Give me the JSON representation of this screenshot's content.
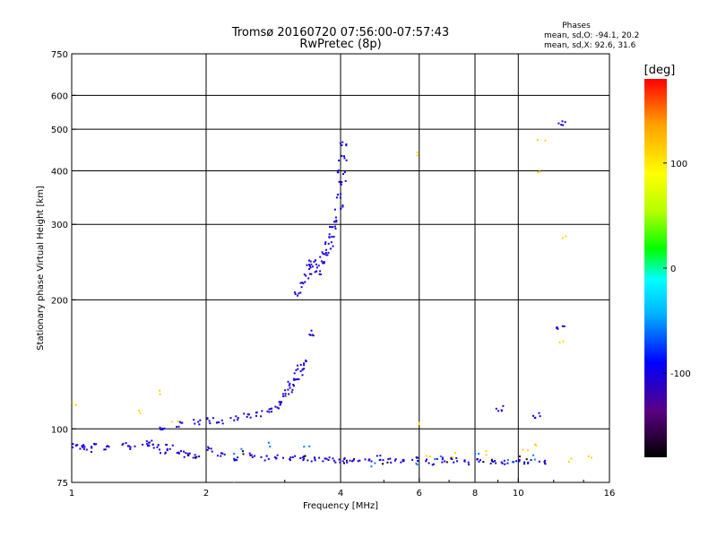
{
  "chart_data": {
    "type": "scatter",
    "title": "Tromsø 20160720 07:56:00-07:57:43",
    "subtitle": "RwPretec (8p)",
    "xlabel": "Frequency [MHz]",
    "ylabel": "Stationary phase Virtual Height [km]",
    "x_scale": "log",
    "y_scale": "log",
    "xlim": [
      1,
      16
    ],
    "ylim": [
      75,
      750
    ],
    "x_ticks": [
      1,
      2,
      4,
      6,
      8,
      10,
      16
    ],
    "x_tick_labels": [
      "1",
      "2",
      "4",
      "6",
      "8",
      "10",
      "16"
    ],
    "y_ticks": [
      75,
      100,
      200,
      300,
      400,
      500,
      600,
      750
    ],
    "y_tick_labels": [
      "75",
      "100",
      "200",
      "300",
      "400",
      "500",
      "600",
      "750"
    ],
    "grid_x": [
      2,
      4,
      6,
      8,
      10
    ],
    "grid_y": [
      100,
      200,
      300,
      400,
      500,
      600
    ],
    "grid": true,
    "stats": {
      "heading": "Phases",
      "line_o": "mean, sd,O: -94.1, 20.2",
      "line_x": "mean, sd,X:  92.6, 31.6"
    },
    "colorbar": {
      "label": "[deg]",
      "min": -180,
      "max": 180,
      "ticks": [
        100,
        0,
        -100
      ],
      "tick_labels": [
        "100",
        "0",
        "-100"
      ],
      "colors": [
        "#000000",
        "#5a0080",
        "#0000ff",
        "#00b4ff",
        "#00ffff",
        "#00ff00",
        "#b4ff00",
        "#ffff00",
        "#ffa000",
        "#ff0000"
      ]
    },
    "series": [
      {
        "description_phase_deg": -100,
        "points": [
          [
            1.02,
            92
          ],
          [
            1.05,
            91
          ],
          [
            1.08,
            90
          ],
          [
            1.12,
            92
          ],
          [
            1.2,
            91
          ],
          [
            1.32,
            92
          ],
          [
            1.35,
            91
          ],
          [
            1.45,
            93
          ],
          [
            1.5,
            93
          ],
          [
            1.55,
            92
          ],
          [
            1.6,
            89
          ],
          [
            1.65,
            91
          ],
          [
            1.75,
            88
          ],
          [
            1.82,
            87
          ],
          [
            1.9,
            87
          ],
          [
            2.05,
            90
          ],
          [
            2.15,
            88
          ],
          [
            2.3,
            86
          ],
          [
            2.5,
            87
          ],
          [
            2.7,
            86
          ],
          [
            2.9,
            86
          ],
          [
            3.1,
            86
          ],
          [
            3.3,
            85
          ],
          [
            3.5,
            85
          ],
          [
            3.7,
            85
          ],
          [
            3.9,
            85
          ],
          [
            4.1,
            85
          ],
          [
            4.3,
            85
          ],
          [
            4.6,
            85
          ],
          [
            4.9,
            86
          ],
          [
            5.2,
            85
          ],
          [
            5.5,
            84
          ],
          [
            5.9,
            85
          ],
          [
            6.3,
            84
          ],
          [
            6.7,
            85
          ],
          [
            7.2,
            85
          ],
          [
            7.7,
            84
          ],
          [
            8.2,
            85
          ],
          [
            8.7,
            84
          ],
          [
            9.3,
            84
          ],
          [
            9.9,
            84
          ],
          [
            10.5,
            84
          ],
          [
            11.2,
            84
          ],
          [
            1.6,
            101
          ],
          [
            1.75,
            103
          ],
          [
            1.9,
            104
          ],
          [
            2.05,
            105
          ],
          [
            2.15,
            104
          ],
          [
            2.3,
            106
          ],
          [
            2.45,
            108
          ],
          [
            2.6,
            109
          ],
          [
            2.75,
            111
          ],
          [
            2.85,
            113
          ],
          [
            2.95,
            115
          ],
          [
            3.02,
            120
          ],
          [
            3.05,
            124
          ],
          [
            3.1,
            128
          ],
          [
            3.15,
            132
          ],
          [
            3.2,
            136
          ],
          [
            3.25,
            140
          ],
          [
            3.3,
            143
          ],
          [
            3.2,
            208
          ],
          [
            3.3,
            218
          ],
          [
            3.35,
            228
          ],
          [
            3.4,
            240
          ],
          [
            3.45,
            250
          ],
          [
            3.5,
            242
          ],
          [
            3.55,
            232
          ],
          [
            3.6,
            245
          ],
          [
            3.65,
            255
          ],
          [
            3.7,
            262
          ],
          [
            3.75,
            270
          ],
          [
            3.8,
            282
          ],
          [
            3.85,
            295
          ],
          [
            3.9,
            310
          ],
          [
            3.95,
            330
          ],
          [
            3.98,
            352
          ],
          [
            4.0,
            375
          ],
          [
            4.01,
            400
          ],
          [
            4.02,
            430
          ],
          [
            4.03,
            465
          ],
          [
            3.45,
            168
          ],
          [
            9.0,
            112
          ],
          [
            11.0,
            108
          ],
          [
            12.4,
            172
          ],
          [
            12.4,
            520
          ]
        ]
      },
      {
        "description_phase_deg": -60,
        "points": [
          [
            2.25,
            75
          ],
          [
            2.35,
            89
          ],
          [
            2.8,
            92
          ],
          [
            3.35,
            92
          ],
          [
            4.7,
            83
          ],
          [
            5.8,
            84
          ],
          [
            6.6,
            86
          ],
          [
            8.1,
            88
          ],
          [
            9.5,
            84
          ],
          [
            10.8,
            86
          ]
        ]
      },
      {
        "description_phase_deg": -170,
        "points": [
          [
            1.85,
            87
          ],
          [
            2.45,
            88
          ],
          [
            3.25,
            86
          ],
          [
            4.15,
            84
          ],
          [
            5.0,
            84
          ],
          [
            6.9,
            85
          ],
          [
            8.5,
            85
          ],
          [
            10.2,
            86
          ]
        ]
      },
      {
        "description_phase_deg": 110,
        "points": [
          [
            1.0,
            115
          ],
          [
            1.4,
            110
          ],
          [
            1.55,
            122
          ],
          [
            1.7,
            104
          ],
          [
            5.8,
            440
          ],
          [
            6.0,
            104
          ],
          [
            6.2,
            86
          ],
          [
            7.2,
            87
          ],
          [
            8.4,
            88
          ],
          [
            10.3,
            89
          ],
          [
            11.1,
            92
          ],
          [
            11.2,
            470
          ],
          [
            11.2,
            395
          ],
          [
            12.7,
            283
          ],
          [
            12.5,
            162
          ],
          [
            12.8,
            85
          ],
          [
            14.2,
            86
          ]
        ]
      }
    ]
  }
}
